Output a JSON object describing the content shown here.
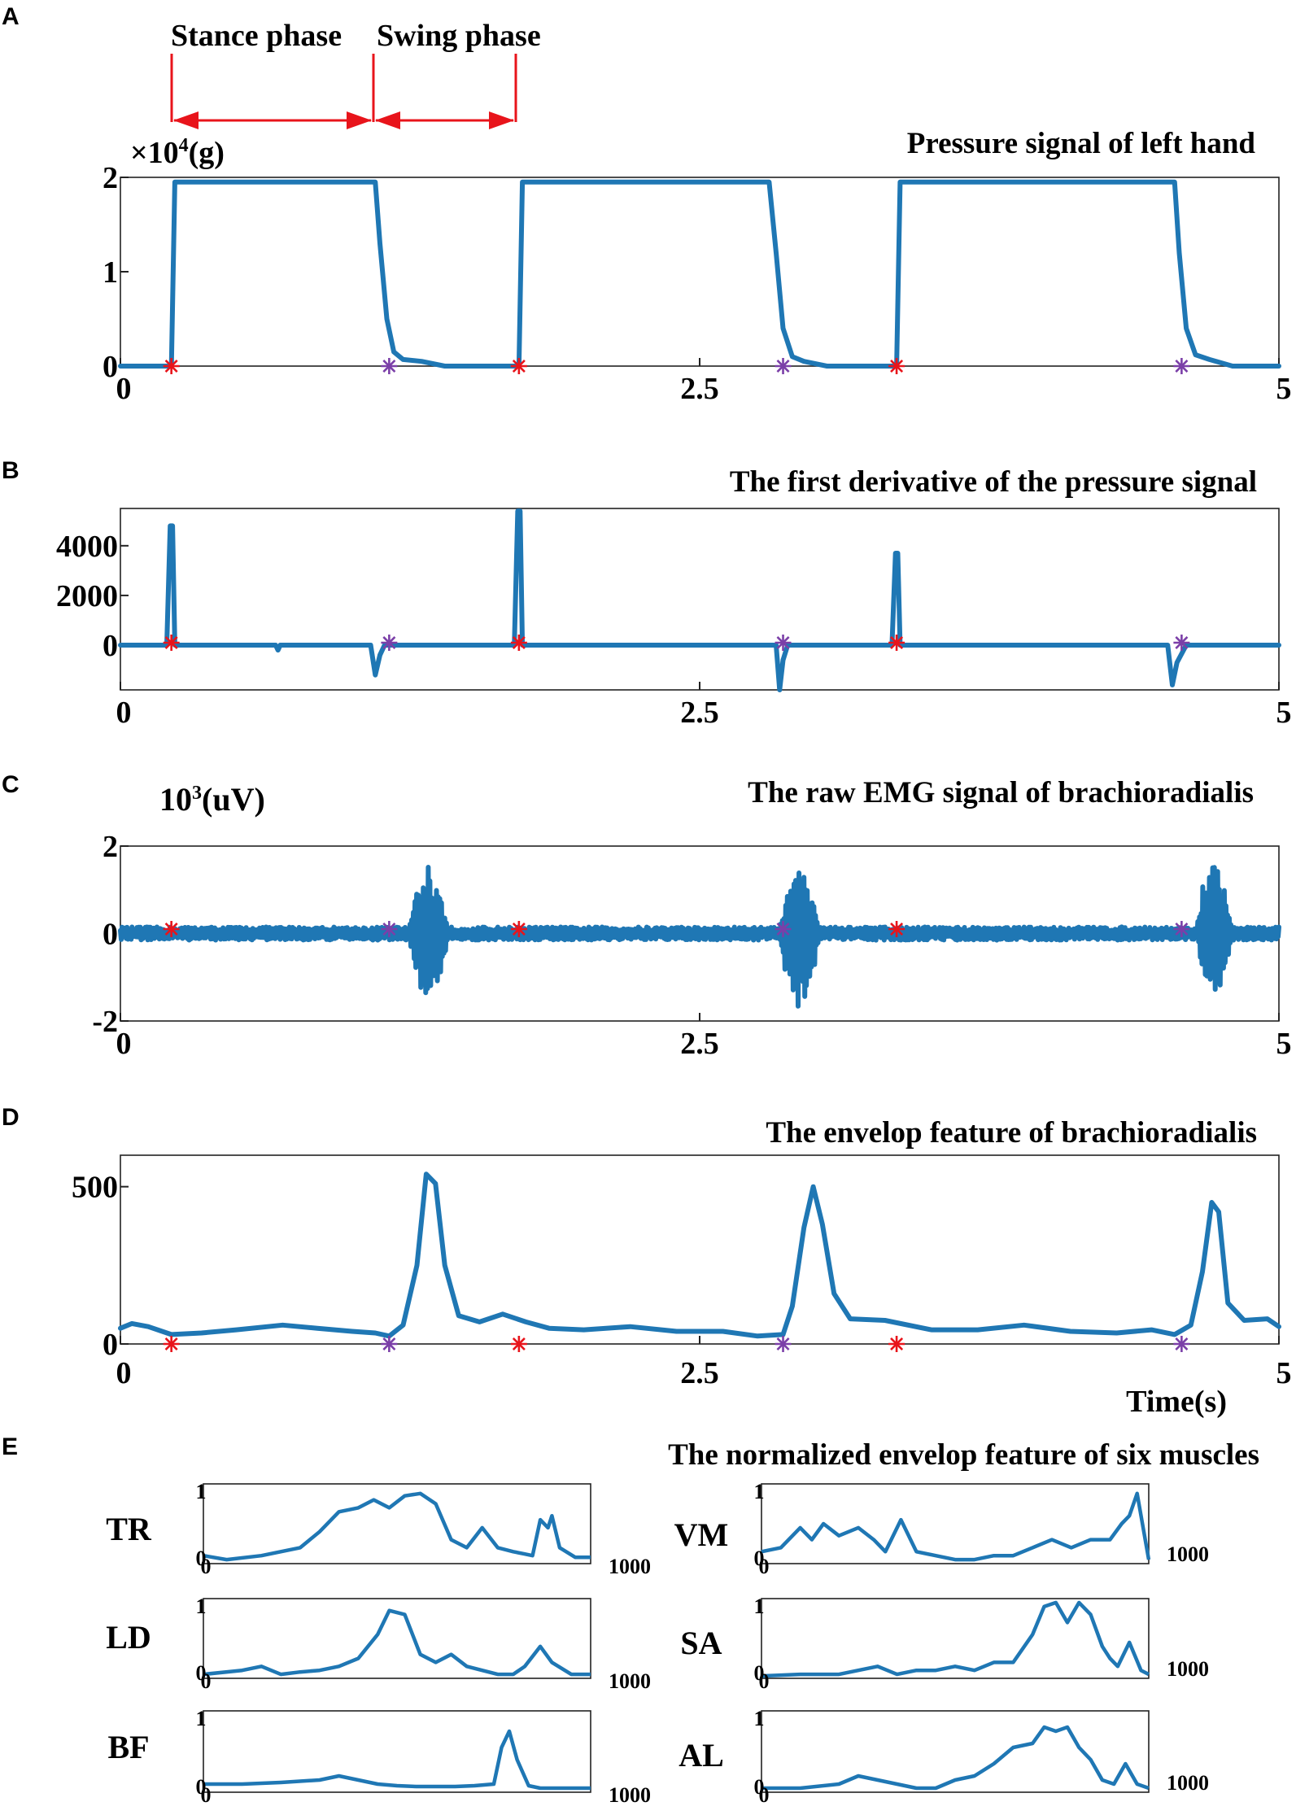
{
  "colors": {
    "trace": "#1f77b4",
    "stance_marker": "#e8141b",
    "swing_marker": "#7b3fa8",
    "phase_arrow": "#e8141b",
    "frame": "#222222"
  },
  "phase_labels": {
    "stance": "Stance phase",
    "swing": "Swing phase"
  },
  "panels": [
    {
      "letter": "A",
      "title": "Pressure signal of left hand",
      "unit_prefix": "×10",
      "unit_exp": "4",
      "unit_suffix": "(g)"
    },
    {
      "letter": "B",
      "title": "The first derivative of the pressure signal"
    },
    {
      "letter": "C",
      "title": "The raw EMG signal of brachioradialis",
      "unit_prefix": "10",
      "unit_exp": "3",
      "unit_suffix": "(uV)"
    },
    {
      "letter": "D",
      "title": "The envelop feature of brachioradialis",
      "xlabel": "Time(s)"
    },
    {
      "letter": "E",
      "title": "The normalized envelop feature of six muscles"
    }
  ],
  "chart_data": [
    {
      "type": "line",
      "panel": "A",
      "title": "Pressure signal of left hand",
      "ylabel": "×10^4(g)",
      "xlim": [
        0,
        5
      ],
      "ylim": [
        0,
        2
      ],
      "xticks": [
        "0",
        "2.5",
        "5"
      ],
      "yticks": [
        "0",
        "1",
        "2"
      ],
      "series": [
        {
          "x": [
            0,
            0.22,
            0.235,
            1.1,
            1.12,
            1.15,
            1.18,
            1.22,
            1.3,
            1.4,
            1.72,
            1.735,
            2.8,
            2.83,
            2.86,
            2.9,
            2.95,
            3.05,
            3.35,
            3.365,
            4.55,
            4.57,
            4.6,
            4.64,
            4.7,
            4.8,
            5.0
          ],
          "y": [
            0.0,
            0.0,
            1.95,
            1.95,
            1.3,
            0.5,
            0.15,
            0.07,
            0.05,
            0.0,
            0.0,
            1.95,
            1.95,
            1.2,
            0.4,
            0.1,
            0.05,
            0.0,
            0.0,
            1.95,
            1.95,
            1.2,
            0.4,
            0.12,
            0.07,
            0.0,
            0.0
          ]
        }
      ],
      "stance_onsets": [
        0.22,
        1.72,
        3.35
      ],
      "swing_onsets": [
        1.16,
        2.86,
        4.58
      ]
    },
    {
      "type": "line",
      "panel": "B",
      "title": "The first derivative of the pressure signal",
      "xlim": [
        0,
        5
      ],
      "ylim": [
        -1800,
        5500
      ],
      "xticks": [
        "0",
        "2.5",
        "5"
      ],
      "yticks": [
        "0",
        "2000",
        "4000"
      ],
      "series": [
        {
          "x": [
            0,
            0.2,
            0.215,
            0.225,
            0.235,
            0.25,
            0.67,
            0.68,
            0.69,
            1.08,
            1.1,
            1.12,
            1.14,
            1.2,
            1.7,
            1.715,
            1.725,
            1.735,
            1.75,
            2.83,
            2.845,
            2.86,
            2.88,
            2.95,
            3.33,
            3.345,
            3.355,
            3.365,
            3.38,
            4.52,
            4.54,
            4.56,
            4.6,
            4.7,
            5.0
          ],
          "y": [
            0,
            0,
            4800,
            4800,
            0,
            0,
            0,
            -200,
            0,
            0,
            -1200,
            -400,
            0,
            0,
            0,
            5400,
            5400,
            0,
            0,
            0,
            -1800,
            -600,
            0,
            0,
            0,
            3700,
            3700,
            0,
            0,
            0,
            -1600,
            -700,
            0,
            0,
            0
          ]
        }
      ],
      "stance_onsets": [
        0.22,
        1.72,
        3.35
      ],
      "swing_onsets": [
        1.16,
        2.86,
        4.58
      ]
    },
    {
      "type": "line",
      "panel": "C",
      "title": "The raw EMG signal of brachioradialis",
      "ylabel": "10^3(uV)",
      "xlim": [
        0,
        5
      ],
      "ylim": [
        -2,
        2
      ],
      "xticks": [
        "0",
        "2.5",
        "5"
      ],
      "yticks": [
        "-2",
        "0",
        "2"
      ],
      "noise_amplitude": 0.15,
      "bursts": [
        {
          "center": 1.33,
          "halfwidth": 0.09,
          "peak_pos": 1.55,
          "peak_neg": -1.6
        },
        {
          "center": 2.93,
          "halfwidth": 0.09,
          "peak_pos": 1.4,
          "peak_neg": -1.8
        },
        {
          "center": 4.72,
          "halfwidth": 0.08,
          "peak_pos": 1.9,
          "peak_neg": -1.4
        }
      ],
      "stance_onsets": [
        0.22,
        1.72,
        3.35
      ],
      "swing_onsets": [
        1.16,
        2.86,
        4.58
      ]
    },
    {
      "type": "line",
      "panel": "D",
      "title": "The envelop feature of brachioradialis",
      "xlabel": "Time(s)",
      "xlim": [
        0,
        5
      ],
      "ylim": [
        0,
        600
      ],
      "xticks": [
        "0",
        "2.5",
        "5"
      ],
      "yticks": [
        "0",
        "500"
      ],
      "series": [
        {
          "x": [
            0,
            0.05,
            0.12,
            0.22,
            0.35,
            0.5,
            0.7,
            0.85,
            1.0,
            1.1,
            1.16,
            1.22,
            1.28,
            1.32,
            1.36,
            1.4,
            1.46,
            1.55,
            1.65,
            1.75,
            1.85,
            2.0,
            2.2,
            2.4,
            2.6,
            2.75,
            2.86,
            2.9,
            2.95,
            2.99,
            3.03,
            3.08,
            3.15,
            3.3,
            3.5,
            3.7,
            3.9,
            4.1,
            4.3,
            4.45,
            4.55,
            4.62,
            4.67,
            4.71,
            4.74,
            4.78,
            4.85,
            4.95,
            5.0
          ],
          "y": [
            50,
            65,
            55,
            30,
            35,
            45,
            60,
            50,
            40,
            35,
            25,
            60,
            250,
            540,
            510,
            250,
            90,
            70,
            95,
            70,
            50,
            45,
            55,
            40,
            40,
            25,
            30,
            120,
            370,
            500,
            380,
            160,
            80,
            75,
            45,
            45,
            60,
            40,
            35,
            45,
            30,
            60,
            230,
            450,
            420,
            130,
            75,
            80,
            55
          ]
        }
      ],
      "stance_onsets": [
        0.22,
        1.72,
        3.35
      ],
      "swing_onsets": [
        1.16,
        2.86,
        4.58
      ]
    },
    {
      "type": "line",
      "panel": "E",
      "title": "The normalized envelop feature of six muscles",
      "xlim": [
        0,
        1000
      ],
      "ylim": [
        0,
        1
      ],
      "subplots": [
        {
          "name": "TR",
          "x": [
            0,
            60,
            150,
            250,
            300,
            350,
            400,
            440,
            480,
            520,
            560,
            600,
            640,
            680,
            720,
            760,
            800,
            830,
            850,
            870,
            890,
            900,
            920,
            960,
            1000
          ],
          "y": [
            0.1,
            0.05,
            0.1,
            0.2,
            0.4,
            0.65,
            0.7,
            0.8,
            0.7,
            0.85,
            0.88,
            0.75,
            0.3,
            0.2,
            0.45,
            0.2,
            0.15,
            0.12,
            0.1,
            0.55,
            0.45,
            0.6,
            0.2,
            0.08,
            0.08
          ]
        },
        {
          "name": "VM",
          "x": [
            0,
            50,
            100,
            130,
            160,
            200,
            250,
            290,
            320,
            360,
            400,
            450,
            500,
            550,
            600,
            650,
            700,
            750,
            800,
            850,
            900,
            930,
            950,
            970,
            1000
          ],
          "y": [
            0.15,
            0.2,
            0.45,
            0.3,
            0.5,
            0.35,
            0.45,
            0.3,
            0.15,
            0.55,
            0.15,
            0.1,
            0.05,
            0.05,
            0.1,
            0.1,
            0.2,
            0.3,
            0.2,
            0.3,
            0.3,
            0.5,
            0.6,
            0.88,
            0.05
          ]
        },
        {
          "name": "LD",
          "x": [
            0,
            100,
            150,
            200,
            250,
            300,
            350,
            400,
            450,
            480,
            520,
            560,
            600,
            640,
            680,
            720,
            760,
            800,
            830,
            870,
            900,
            950,
            1000
          ],
          "y": [
            0.05,
            0.1,
            0.15,
            0.05,
            0.08,
            0.1,
            0.15,
            0.25,
            0.55,
            0.85,
            0.8,
            0.3,
            0.2,
            0.3,
            0.15,
            0.1,
            0.05,
            0.05,
            0.15,
            0.4,
            0.2,
            0.05,
            0.05
          ]
        },
        {
          "name": "SA",
          "x": [
            0,
            100,
            200,
            250,
            300,
            350,
            400,
            450,
            500,
            550,
            600,
            650,
            700,
            730,
            760,
            790,
            820,
            850,
            880,
            900,
            920,
            950,
            980,
            1000
          ],
          "y": [
            0.03,
            0.05,
            0.05,
            0.1,
            0.15,
            0.05,
            0.1,
            0.1,
            0.15,
            0.1,
            0.2,
            0.2,
            0.55,
            0.9,
            0.95,
            0.7,
            0.95,
            0.8,
            0.4,
            0.25,
            0.15,
            0.45,
            0.1,
            0.05
          ]
        },
        {
          "name": "BF",
          "x": [
            0,
            100,
            200,
            300,
            350,
            400,
            450,
            500,
            550,
            600,
            650,
            700,
            750,
            770,
            790,
            810,
            840,
            870,
            900,
            1000
          ],
          "y": [
            0.1,
            0.1,
            0.12,
            0.15,
            0.2,
            0.15,
            0.1,
            0.08,
            0.07,
            0.07,
            0.07,
            0.08,
            0.1,
            0.55,
            0.75,
            0.4,
            0.08,
            0.05,
            0.05,
            0.05
          ]
        },
        {
          "name": "AL",
          "x": [
            0,
            100,
            200,
            250,
            300,
            350,
            400,
            450,
            500,
            550,
            600,
            650,
            700,
            730,
            760,
            790,
            820,
            850,
            880,
            910,
            940,
            970,
            1000
          ],
          "y": [
            0.05,
            0.05,
            0.1,
            0.2,
            0.15,
            0.1,
            0.05,
            0.05,
            0.15,
            0.2,
            0.35,
            0.55,
            0.6,
            0.8,
            0.75,
            0.8,
            0.55,
            0.4,
            0.15,
            0.1,
            0.35,
            0.1,
            0.05
          ]
        }
      ],
      "corner_labels": {
        "y_top": "1",
        "y_bottom": "0",
        "x_end": "1000"
      }
    }
  ]
}
